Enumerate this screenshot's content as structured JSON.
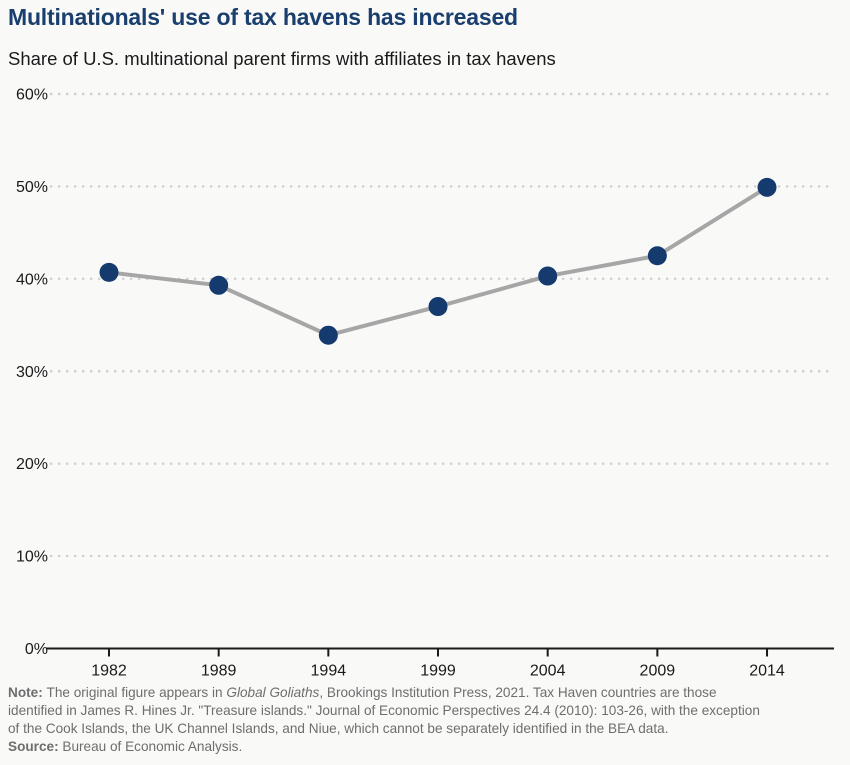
{
  "chart_data": {
    "type": "line",
    "title": "Multinationals' use of tax havens has increased",
    "subtitle": "Share of U.S. multinational parent firms with affiliates in tax havens",
    "categories": [
      "1982",
      "1989",
      "1994",
      "1999",
      "2004",
      "2009",
      "2014"
    ],
    "series": [
      {
        "name": "Share of U.S. multinational parent firms with affiliates in tax havens",
        "values": [
          40.7,
          39.3,
          33.9,
          37.0,
          40.3,
          42.5,
          49.9
        ]
      }
    ],
    "xlabel": "",
    "ylabel": "",
    "ylim": [
      0,
      60
    ],
    "ytick_step": 10,
    "ytick_suffix": "%",
    "grid": "horizontal-dotted",
    "legend": "none"
  },
  "footnote": {
    "note_label": "Note: ",
    "note_pre_italic": "The original figure appears in ",
    "note_italic": "Global Goliaths",
    "note_rest": ", Brookings Institution Press, 2021. Tax Haven countries are those\nidentified in James R. Hines Jr. \"Treasure islands.\" Journal of Economic Perspectives 24.4 (2010): 103-26, with the exception\nof the Cook Islands, the UK Channel Islands, and Niue, which cannot be separately identified in the BEA data.\n",
    "source_label": "Source: ",
    "source_text": "Bureau of Economic Analysis."
  },
  "appearance": {
    "background": "#f9f9f8",
    "title_color": "#1a3e6d",
    "subtitle_color": "#1a1a1a",
    "line_color": "#a6a6a6",
    "marker_color": "#143a6e",
    "gridline_color": "#cfcfcf",
    "axis_color": "#1a1a1a",
    "axis_text_color": "#1a1a1a",
    "note_color": "#6e6e6e"
  }
}
